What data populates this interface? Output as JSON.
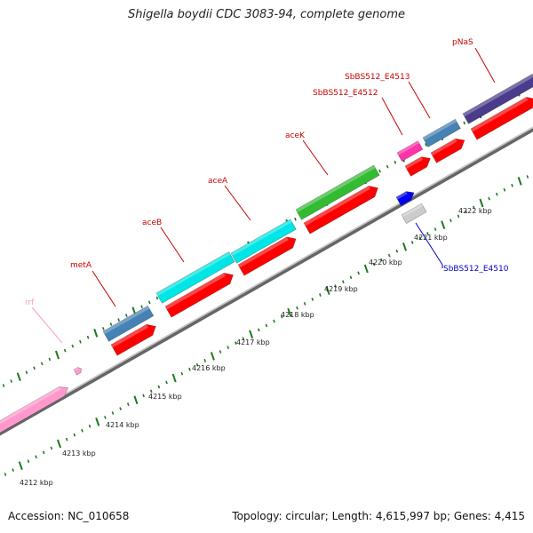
{
  "title": "Shigella boydii CDC 3083-94, complete genome",
  "accession": "Accession: NC_010658",
  "summary": "Topology: circular; Length: 4,615,997 bp; Genes: 4,415",
  "kbp_ticks": [
    "4212 kbp",
    "4213 kbp",
    "4214 kbp",
    "4215 kbp",
    "4216 kbp",
    "4217 kbp",
    "4218 kbp",
    "4219 kbp",
    "4220 kbp",
    "4221 kbp",
    "4222 kbp"
  ],
  "colors": {
    "backbone": "#8a8a8a",
    "tick": "#1e7a1e",
    "cds": "#ff0000",
    "label_red": "#cc0000",
    "label_blue": "#0000cc",
    "label_pink": "#ff99cc",
    "pink": "#ff99cc",
    "steel": "#4682b4",
    "cyan": "#00e5e5",
    "green": "#33bb33",
    "magenta": "#ff33aa",
    "navy": "#4b3b8c",
    "blue": "#0000ee",
    "grey": "#cccccc"
  },
  "genes": [
    {
      "label": "rrf",
      "label_color": "pink"
    },
    {
      "label": "metA",
      "label_color": "red"
    },
    {
      "label": "aceB",
      "label_color": "red"
    },
    {
      "label": "aceA",
      "label_color": "red"
    },
    {
      "label": "aceK",
      "label_color": "red"
    },
    {
      "label": "SbBS512_E4512",
      "label_color": "red"
    },
    {
      "label": "SbBS512_E4513",
      "label_color": "red"
    },
    {
      "label": "pNaS",
      "label_color": "red"
    },
    {
      "label": "SbBS512_E4510",
      "label_color": "blue"
    }
  ]
}
